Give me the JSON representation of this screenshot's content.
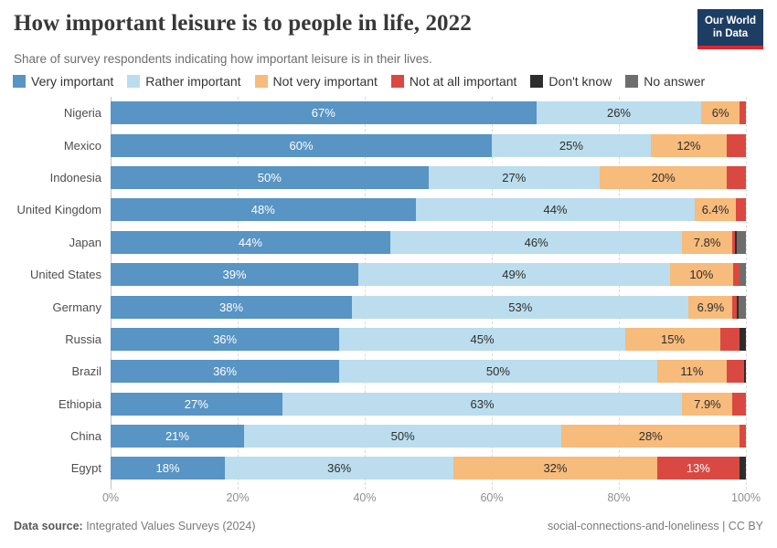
{
  "header": {
    "title": "How important leisure is to people in life, 2022",
    "subtitle": "Share of survey respondents indicating how important leisure is in their lives.",
    "logo_line1": "Our World",
    "logo_line2": "in Data",
    "logo_bg": "#1d3d63",
    "logo_accent": "#e0262c"
  },
  "legend": [
    {
      "label": "Very important",
      "color": "#5894c4"
    },
    {
      "label": "Rather important",
      "color": "#bbdded"
    },
    {
      "label": "Not very important",
      "color": "#f7bb7c"
    },
    {
      "label": "Not at all important",
      "color": "#d94941"
    },
    {
      "label": "Don't know",
      "color": "#2d2d2d"
    },
    {
      "label": "No answer",
      "color": "#6e6e6e"
    }
  ],
  "chart_data": {
    "type": "bar",
    "orientation": "horizontal-stacked",
    "title": "How important leisure is to people in life, 2022",
    "xlabel": "",
    "ylabel": "",
    "xlim": [
      0,
      100
    ],
    "grid": "dashed-vertical",
    "label_min_value": 5,
    "categories": [
      "Nigeria",
      "Mexico",
      "Indonesia",
      "United Kingdom",
      "Japan",
      "United States",
      "Germany",
      "Russia",
      "Brazil",
      "Ethiopia",
      "China",
      "Egypt"
    ],
    "series": [
      {
        "name": "Very important",
        "color": "#5894c4",
        "text_color": "#ffffff",
        "values": [
          67,
          60,
          50,
          48,
          44,
          39,
          38,
          36,
          36,
          27,
          21,
          18
        ]
      },
      {
        "name": "Rather important",
        "color": "#bbdded",
        "text_color": "#2d2d2d",
        "values": [
          26,
          25,
          27,
          44,
          46,
          49,
          53,
          45,
          50,
          63,
          50,
          36
        ]
      },
      {
        "name": "Not very important",
        "color": "#f7bb7c",
        "text_color": "#2d2d2d",
        "values": [
          6,
          12,
          20,
          6.4,
          7.8,
          10,
          6.9,
          15,
          11,
          7.9,
          28,
          32
        ]
      },
      {
        "name": "Not at all important",
        "color": "#d94941",
        "text_color": "#ffffff",
        "values": [
          1,
          3,
          3,
          1.6,
          0.5,
          1,
          0.6,
          3,
          2.7,
          2.1,
          1,
          13
        ]
      },
      {
        "name": "Don't know",
        "color": "#2d2d2d",
        "text_color": "#ffffff",
        "values": [
          0,
          0,
          0,
          0,
          0.2,
          0,
          0.3,
          1,
          0.3,
          0,
          0,
          1
        ]
      },
      {
        "name": "No answer",
        "color": "#6e6e6e",
        "text_color": "#ffffff",
        "values": [
          0,
          0,
          0,
          0,
          1.5,
          1,
          1.2,
          0,
          0,
          0,
          0,
          0
        ]
      }
    ],
    "xticks": [
      {
        "label": "0%",
        "value": 0
      },
      {
        "label": "20%",
        "value": 20
      },
      {
        "label": "40%",
        "value": 40
      },
      {
        "label": "60%",
        "value": 60
      },
      {
        "label": "80%",
        "value": 80
      },
      {
        "label": "100%",
        "value": 100
      }
    ]
  },
  "footer": {
    "source_label": "Data source:",
    "source_value": " Integrated Values Surveys (2024)",
    "note": "social-connections-and-loneliness | CC BY"
  }
}
